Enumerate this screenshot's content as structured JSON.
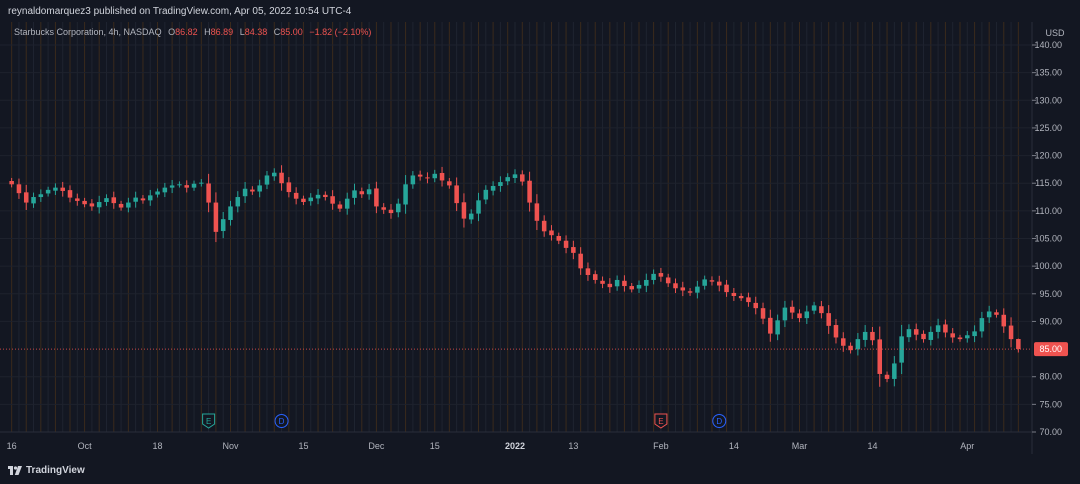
{
  "header": {
    "published_line": "reynaldomarquez3 published on TradingView.com, Apr 05, 2022 10:54 UTC-4"
  },
  "legend": {
    "symbol": "Starbucks Corporation, 4h, NASDAQ",
    "o_label": "O",
    "o_value": "86.82",
    "h_label": "H",
    "h_value": "86.89",
    "l_label": "L",
    "l_value": "84.38",
    "c_label": "C",
    "c_value": "85.00",
    "change": "−1.82 (−2.10%)"
  },
  "footer": {
    "brand": "TradingView"
  },
  "colors": {
    "up": "#26a69a",
    "down": "#ef5350",
    "background": "#131722",
    "last_price_line": "#ef5350"
  },
  "chart_data": {
    "type": "candlestick",
    "currency_label": "USD",
    "last_price": 85.0,
    "last_price_label": "85.00",
    "ylim": [
      70,
      141
    ],
    "y_ticks": [
      {
        "value": 140,
        "label": "140.00"
      },
      {
        "value": 135,
        "label": "135.00"
      },
      {
        "value": 130,
        "label": "130.00"
      },
      {
        "value": 125,
        "label": "125.00"
      },
      {
        "value": 120,
        "label": "120.00"
      },
      {
        "value": 115,
        "label": "115.00"
      },
      {
        "value": 110,
        "label": "110.00"
      },
      {
        "value": 105,
        "label": "105.00"
      },
      {
        "value": 100,
        "label": "100.00"
      },
      {
        "value": 95,
        "label": "95.00"
      },
      {
        "value": 90,
        "label": "90.00"
      },
      {
        "value": 80,
        "label": "80.00"
      },
      {
        "value": 75,
        "label": "75.00"
      },
      {
        "value": 70,
        "label": "70.00"
      }
    ],
    "x_ticks": [
      {
        "index": 0,
        "label": "16",
        "bold": false
      },
      {
        "index": 10,
        "label": "Oct",
        "bold": false
      },
      {
        "index": 20,
        "label": "18",
        "bold": false
      },
      {
        "index": 30,
        "label": "Nov",
        "bold": false
      },
      {
        "index": 40,
        "label": "15",
        "bold": false
      },
      {
        "index": 50,
        "label": "Dec",
        "bold": false
      },
      {
        "index": 58,
        "label": "15",
        "bold": false
      },
      {
        "index": 69,
        "label": "2022",
        "bold": true
      },
      {
        "index": 77,
        "label": "13",
        "bold": false
      },
      {
        "index": 89,
        "label": "Feb",
        "bold": false
      },
      {
        "index": 99,
        "label": "14",
        "bold": false
      },
      {
        "index": 108,
        "label": "Mar",
        "bold": false
      },
      {
        "index": 118,
        "label": "14",
        "bold": false
      },
      {
        "index": 131,
        "label": "Apr",
        "bold": false
      }
    ],
    "events": [
      {
        "type": "earnings",
        "label": "E",
        "index": 27,
        "color": "#26a69a"
      },
      {
        "type": "dividend",
        "label": "D",
        "index": 37,
        "color": "#2962ff"
      },
      {
        "type": "earnings",
        "label": "E",
        "index": 89,
        "color": "#ef5350"
      },
      {
        "type": "dividend",
        "label": "D",
        "index": 97,
        "color": "#2962ff"
      }
    ],
    "closes": [
      114.8,
      113.2,
      111.5,
      112.5,
      113.0,
      113.8,
      114.2,
      113.6,
      112.4,
      111.8,
      111.2,
      110.8,
      111.6,
      112.3,
      111.4,
      110.6,
      111.5,
      112.4,
      111.9,
      112.8,
      113.5,
      114.2,
      114.6,
      114.8,
      114.2,
      114.9,
      115.1,
      111.5,
      106.2,
      108.5,
      110.8,
      112.5,
      114.0,
      113.5,
      114.6,
      116.4,
      116.9,
      115.0,
      113.4,
      112.2,
      111.6,
      112.4,
      112.9,
      112.5,
      111.3,
      110.4,
      112.2,
      113.7,
      113.0,
      113.9,
      110.8,
      110.2,
      109.6,
      111.3,
      114.8,
      116.4,
      116.2,
      115.9,
      116.7,
      115.5,
      114.6,
      111.4,
      108.6,
      109.5,
      111.9,
      113.8,
      114.5,
      115.2,
      116.1,
      116.6,
      115.3,
      111.5,
      108.2,
      106.3,
      105.6,
      104.6,
      103.3,
      102.4,
      99.6,
      98.4,
      97.5,
      96.8,
      96.2,
      97.5,
      96.4,
      95.8,
      96.6,
      97.5,
      98.6,
      98.1,
      96.9,
      96.0,
      95.6,
      95.2,
      96.3,
      97.6,
      97.2,
      96.5,
      95.3,
      94.6,
      94.2,
      93.5,
      92.4,
      90.5,
      87.8,
      90.2,
      92.5,
      91.6,
      90.6,
      91.8,
      92.9,
      91.5,
      89.2,
      87.1,
      85.6,
      84.8,
      86.8,
      88.1,
      86.6,
      80.5,
      79.6,
      82.4,
      87.3,
      88.6,
      87.6,
      86.8,
      88.1,
      89.3,
      88.0,
      87.1,
      86.8,
      87.5,
      88.2,
      90.6,
      91.8,
      91.2,
      89.1,
      86.8,
      85.0
    ],
    "ohlc_last": {
      "open": 86.82,
      "high": 86.89,
      "low": 84.38,
      "close": 85.0
    }
  }
}
